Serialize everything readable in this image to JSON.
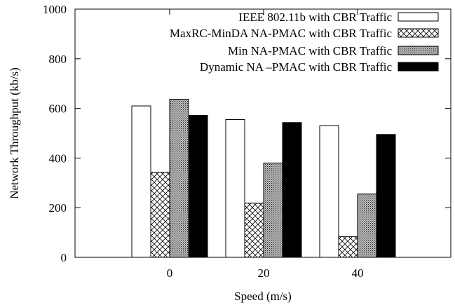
{
  "chart_data": {
    "type": "bar",
    "xlabel": "Speed (m/s)",
    "ylabel": "Network Throughput (kb/s)",
    "ylim": [
      0,
      1000
    ],
    "yticks": [
      0,
      200,
      400,
      600,
      800,
      1000
    ],
    "categories": [
      "0",
      "20",
      "40"
    ],
    "grid": false,
    "legend_position": "top-right",
    "series": [
      {
        "name": "IEEE 802.11b with CBR Traffic",
        "values": [
          610,
          555,
          530
        ],
        "fill": "white"
      },
      {
        "name": "MaxRC-MinDA NA-PMAC with CBR Traffic",
        "values": [
          343,
          218,
          83
        ],
        "fill": "crosshatch"
      },
      {
        "name": "Min NA-PMAC with CBR Traffic",
        "values": [
          637,
          380,
          255
        ],
        "fill": "dense-dots"
      },
      {
        "name": "Dynamic NA –PMAC with CBR Traffic",
        "values": [
          572,
          543,
          495
        ],
        "fill": "black"
      }
    ]
  }
}
